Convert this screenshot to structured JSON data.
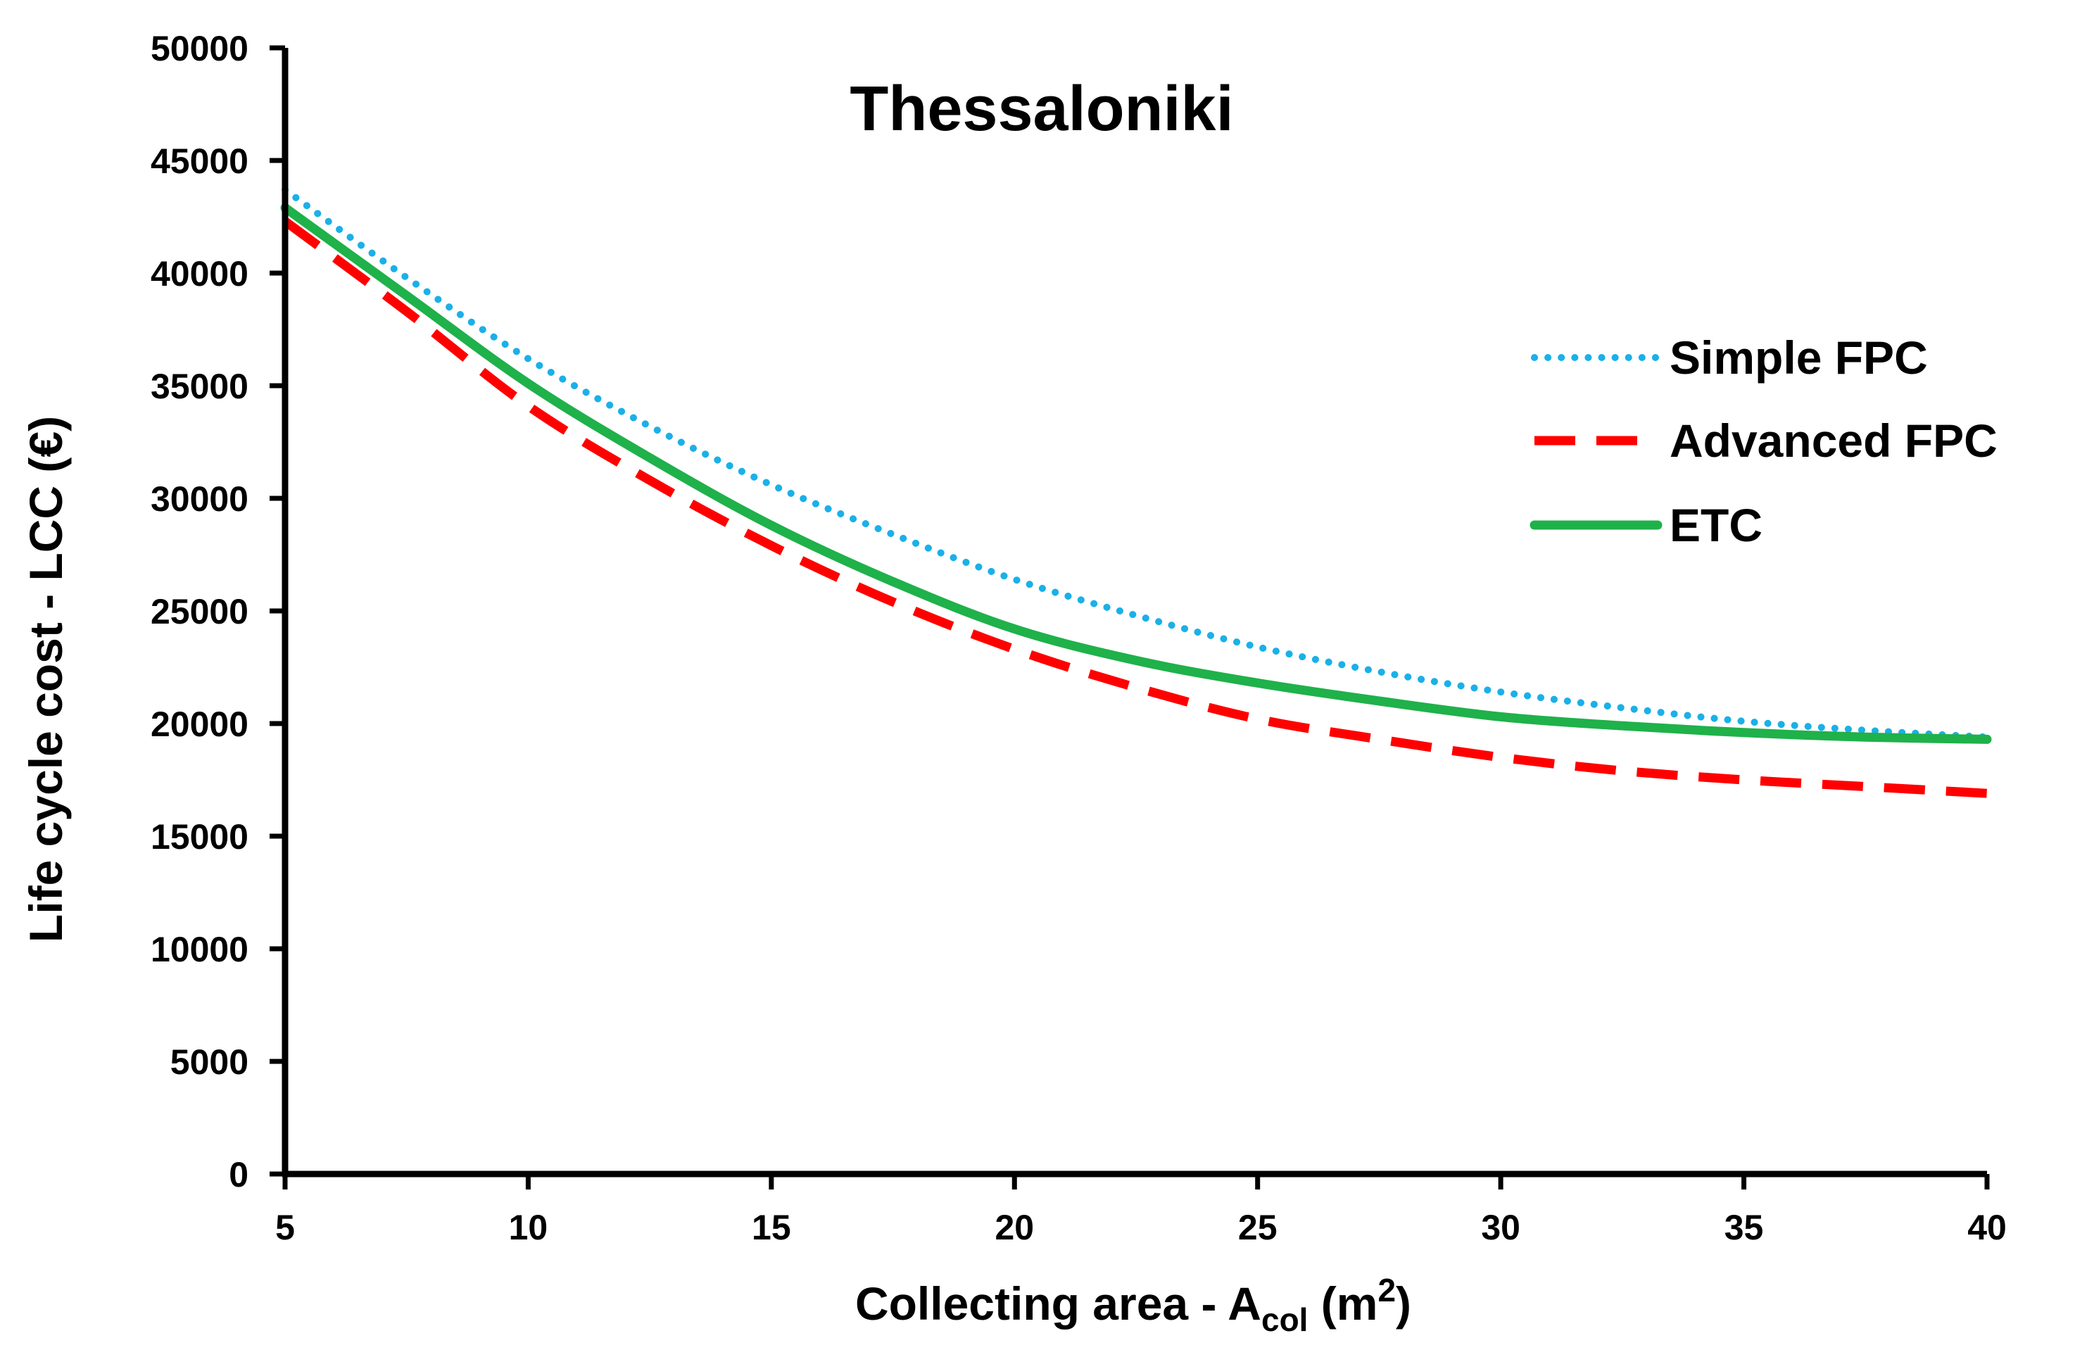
{
  "chart_data": {
    "type": "line",
    "title": "Thessaloniki",
    "xlabel": {
      "main": "Collecting area - A",
      "sub": "col",
      "unit_open": " (m",
      "sup": "2",
      "unit_close": ")"
    },
    "ylabel": "Life cycle cost - LCC (€)",
    "xlim": [
      5,
      40
    ],
    "ylim": [
      0,
      50000
    ],
    "xticks": [
      5,
      10,
      15,
      20,
      25,
      30,
      35,
      40
    ],
    "yticks": [
      0,
      5000,
      10000,
      15000,
      20000,
      25000,
      30000,
      35000,
      40000,
      45000,
      50000
    ],
    "legend_position": "right",
    "x": [
      5,
      7.5,
      10,
      12.5,
      15,
      17.5,
      20,
      22.5,
      25,
      27.5,
      30,
      32.5,
      35,
      37.5,
      40
    ],
    "series": [
      {
        "name": "Simple FPC",
        "style": "dotted",
        "color": "#1ab0e8",
        "values": [
          43700,
          39800,
          36200,
          33200,
          30600,
          28400,
          26400,
          24800,
          23400,
          22300,
          21400,
          20700,
          20100,
          19700,
          19400
        ]
      },
      {
        "name": "Advanced FPC",
        "style": "dashed",
        "color": "#ff0000",
        "values": [
          42300,
          38300,
          34100,
          30800,
          27900,
          25400,
          23300,
          21600,
          20200,
          19300,
          18500,
          17900,
          17500,
          17200,
          16900
        ]
      },
      {
        "name": "ETC",
        "style": "solid",
        "color": "#1fb14a",
        "values": [
          42900,
          39000,
          35100,
          31800,
          28800,
          26300,
          24200,
          22800,
          21800,
          21000,
          20300,
          19900,
          19600,
          19400,
          19300
        ]
      }
    ]
  }
}
